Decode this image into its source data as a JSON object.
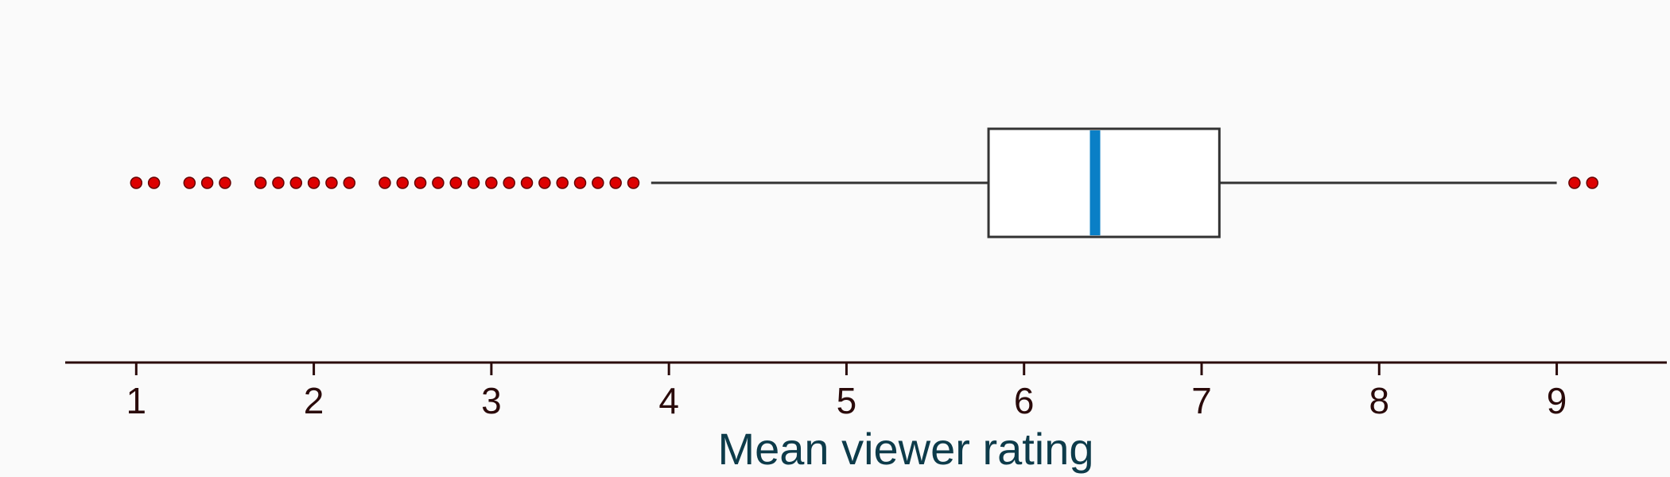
{
  "chart_data": {
    "type": "box",
    "orientation": "horizontal",
    "xlabel": "Mean viewer rating",
    "xlim": [
      0.6,
      9.62
    ],
    "x_ticks": [
      "1",
      "2",
      "3",
      "4",
      "5",
      "6",
      "7",
      "8",
      "9"
    ],
    "box": {
      "q1": 5.8,
      "median": 6.4,
      "q3": 7.1,
      "whisker_low": 3.9,
      "whisker_high": 9.0
    },
    "outliers": [
      1.0,
      1.1,
      1.3,
      1.4,
      1.5,
      1.7,
      1.8,
      1.9,
      2.0,
      2.1,
      2.2,
      2.4,
      2.5,
      2.6,
      2.7,
      2.8,
      2.9,
      3.0,
      3.1,
      3.2,
      3.3,
      3.4,
      3.5,
      3.6,
      3.7,
      3.8,
      9.1,
      9.2
    ],
    "grid": false,
    "colors": {
      "background": "#fafafa",
      "box_fill": "#ffffff",
      "box_stroke": "#333333",
      "median": "#0a7fc6",
      "outlier_fill": "#dd0000",
      "outlier_stroke": "#660000",
      "axis": "#2a0a0a",
      "tick_label": "#2a0a0a",
      "axis_title": "#0d3b4a"
    }
  }
}
